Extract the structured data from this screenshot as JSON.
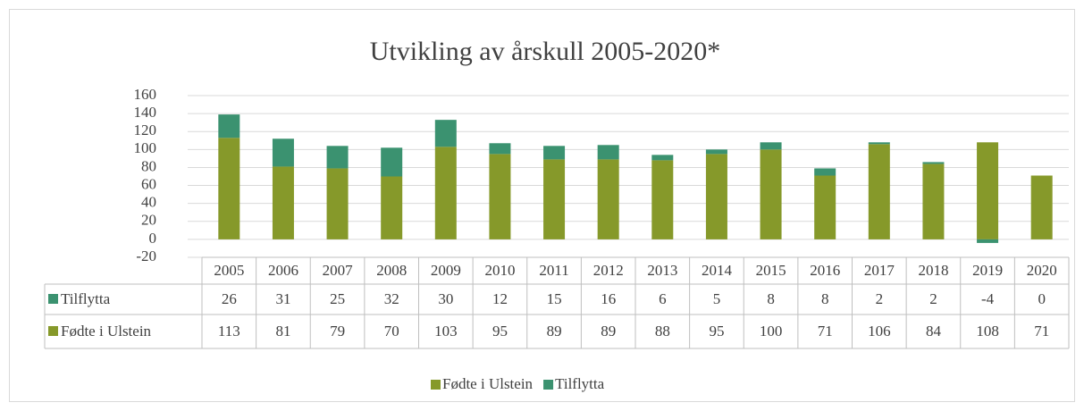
{
  "chart_data": {
    "type": "bar",
    "stacked": true,
    "title": "Utvikling av årskull 2005-2020*",
    "categories": [
      "2005",
      "2006",
      "2007",
      "2008",
      "2009",
      "2010",
      "2011",
      "2012",
      "2013",
      "2014",
      "2015",
      "2016",
      "2017",
      "2018",
      "2019",
      "2020"
    ],
    "series": [
      {
        "name": "Tilflytta",
        "color": "#3b9270",
        "values": [
          26,
          31,
          25,
          32,
          30,
          12,
          15,
          16,
          6,
          5,
          8,
          8,
          2,
          2,
          -4,
          0
        ]
      },
      {
        "name": "Fødte i Ulstein",
        "color": "#86992a",
        "values": [
          113,
          81,
          79,
          70,
          103,
          95,
          89,
          89,
          88,
          95,
          100,
          71,
          106,
          84,
          108,
          71
        ]
      }
    ],
    "ylim": [
      -20,
      160
    ],
    "yticks": [
      -20,
      0,
      20,
      40,
      60,
      80,
      100,
      120,
      140,
      160
    ],
    "grid": true,
    "data_table": true,
    "legend": "bottom"
  }
}
